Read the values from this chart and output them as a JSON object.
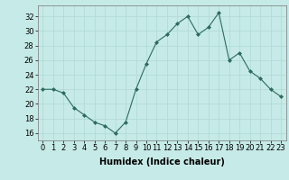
{
  "x": [
    0,
    1,
    2,
    3,
    4,
    5,
    6,
    7,
    8,
    9,
    10,
    11,
    12,
    13,
    14,
    15,
    16,
    17,
    18,
    19,
    20,
    21,
    22,
    23
  ],
  "y": [
    22,
    22,
    21.5,
    19.5,
    18.5,
    17.5,
    17,
    16,
    17.5,
    22,
    25.5,
    28.5,
    29.5,
    31,
    32,
    29.5,
    30.5,
    32.5,
    26,
    27,
    24.5,
    23.5,
    22,
    21
  ],
  "line_color": "#2d6b5e",
  "marker": "D",
  "marker_size": 2,
  "bg_color": "#c5eae7",
  "grid_color": "#b0d8d5",
  "xlabel": "Humidex (Indice chaleur)",
  "xlabel_fontsize": 7,
  "tick_fontsize": 6,
  "ylim": [
    15,
    33.5
  ],
  "yticks": [
    16,
    18,
    20,
    22,
    24,
    26,
    28,
    30,
    32
  ],
  "xticks": [
    0,
    1,
    2,
    3,
    4,
    5,
    6,
    7,
    8,
    9,
    10,
    11,
    12,
    13,
    14,
    15,
    16,
    17,
    18,
    19,
    20,
    21,
    22,
    23
  ]
}
